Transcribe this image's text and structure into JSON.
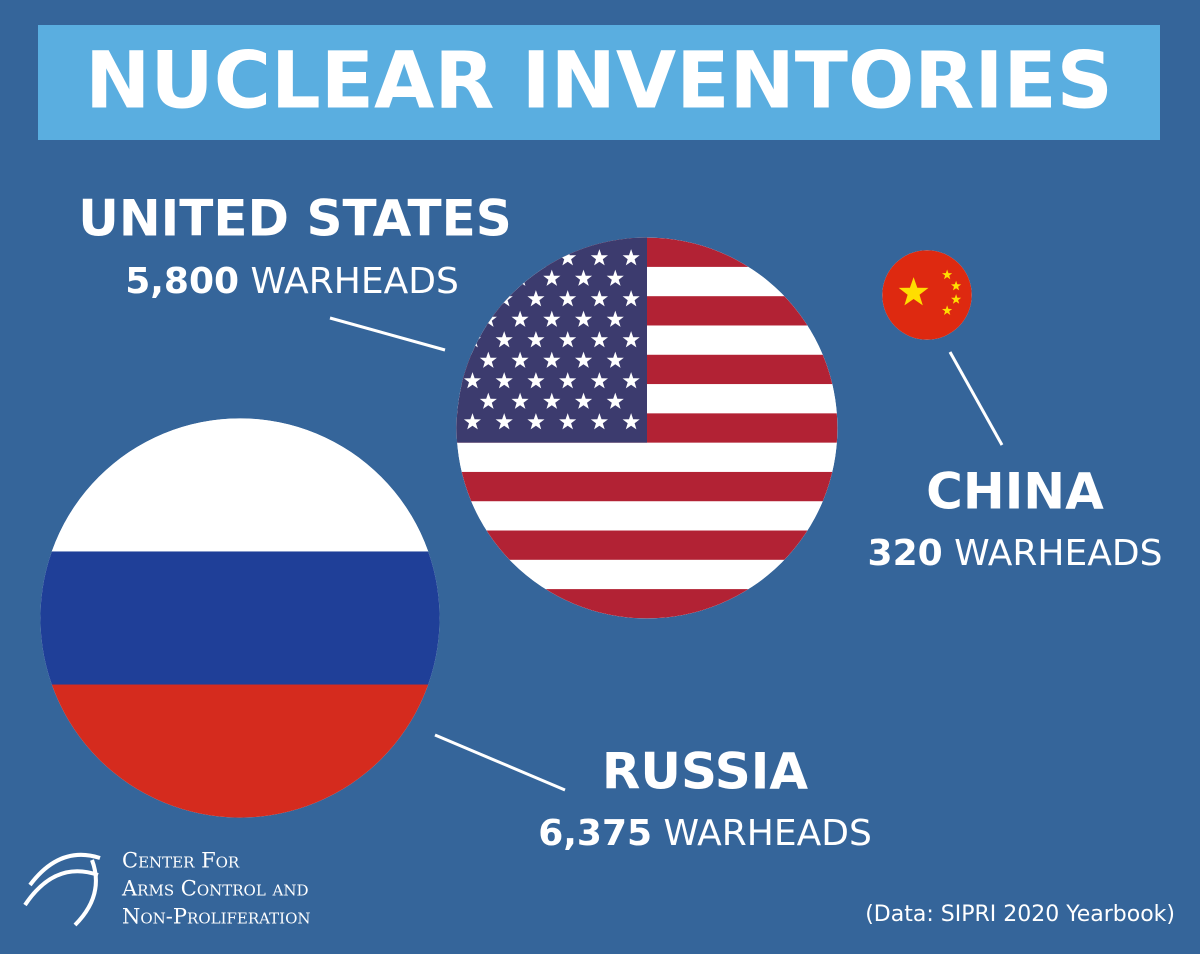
{
  "chart_data": {
    "type": "bubble",
    "title": "NUCLEAR INVENTORIES",
    "categories": [
      "UNITED STATES",
      "CHINA",
      "RUSSIA"
    ],
    "values": [
      5800,
      320,
      6375
    ],
    "value_labels": [
      "5,800",
      "320",
      "6,375"
    ],
    "units": [
      "WARHEADS",
      "WARHEADS",
      "WARHEADS"
    ],
    "organization": [
      "Center For",
      "Arms Control and",
      "Non-Proliferation"
    ],
    "source": "(Data: SIPRI 2020 Yearbook)"
  }
}
